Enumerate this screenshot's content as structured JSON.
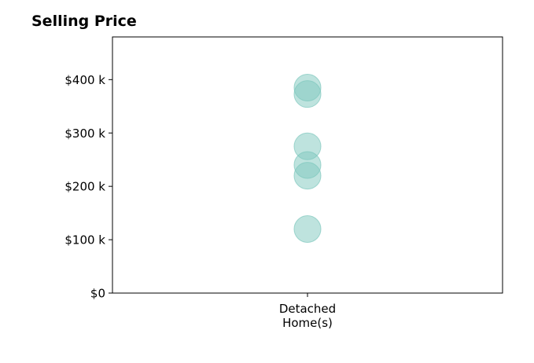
{
  "title": "Selling Price",
  "chart_data": {
    "type": "scatter",
    "title": "Selling Price",
    "xlabel": "",
    "ylabel": "",
    "categories": [
      "Detached\nHome(s)"
    ],
    "yticks": [
      0,
      100000,
      200000,
      300000,
      400000
    ],
    "ytick_labels": [
      "$0",
      "$100 k",
      "$200 k",
      "$300 k",
      "$400 k"
    ],
    "ylim": [
      0,
      480000
    ],
    "grid": false,
    "point_color": "#7ec8bd",
    "series": [
      {
        "category": "Detached\nHome(s)",
        "values": [
          385000,
          373000,
          275000,
          240000,
          220000,
          120000
        ]
      }
    ]
  }
}
